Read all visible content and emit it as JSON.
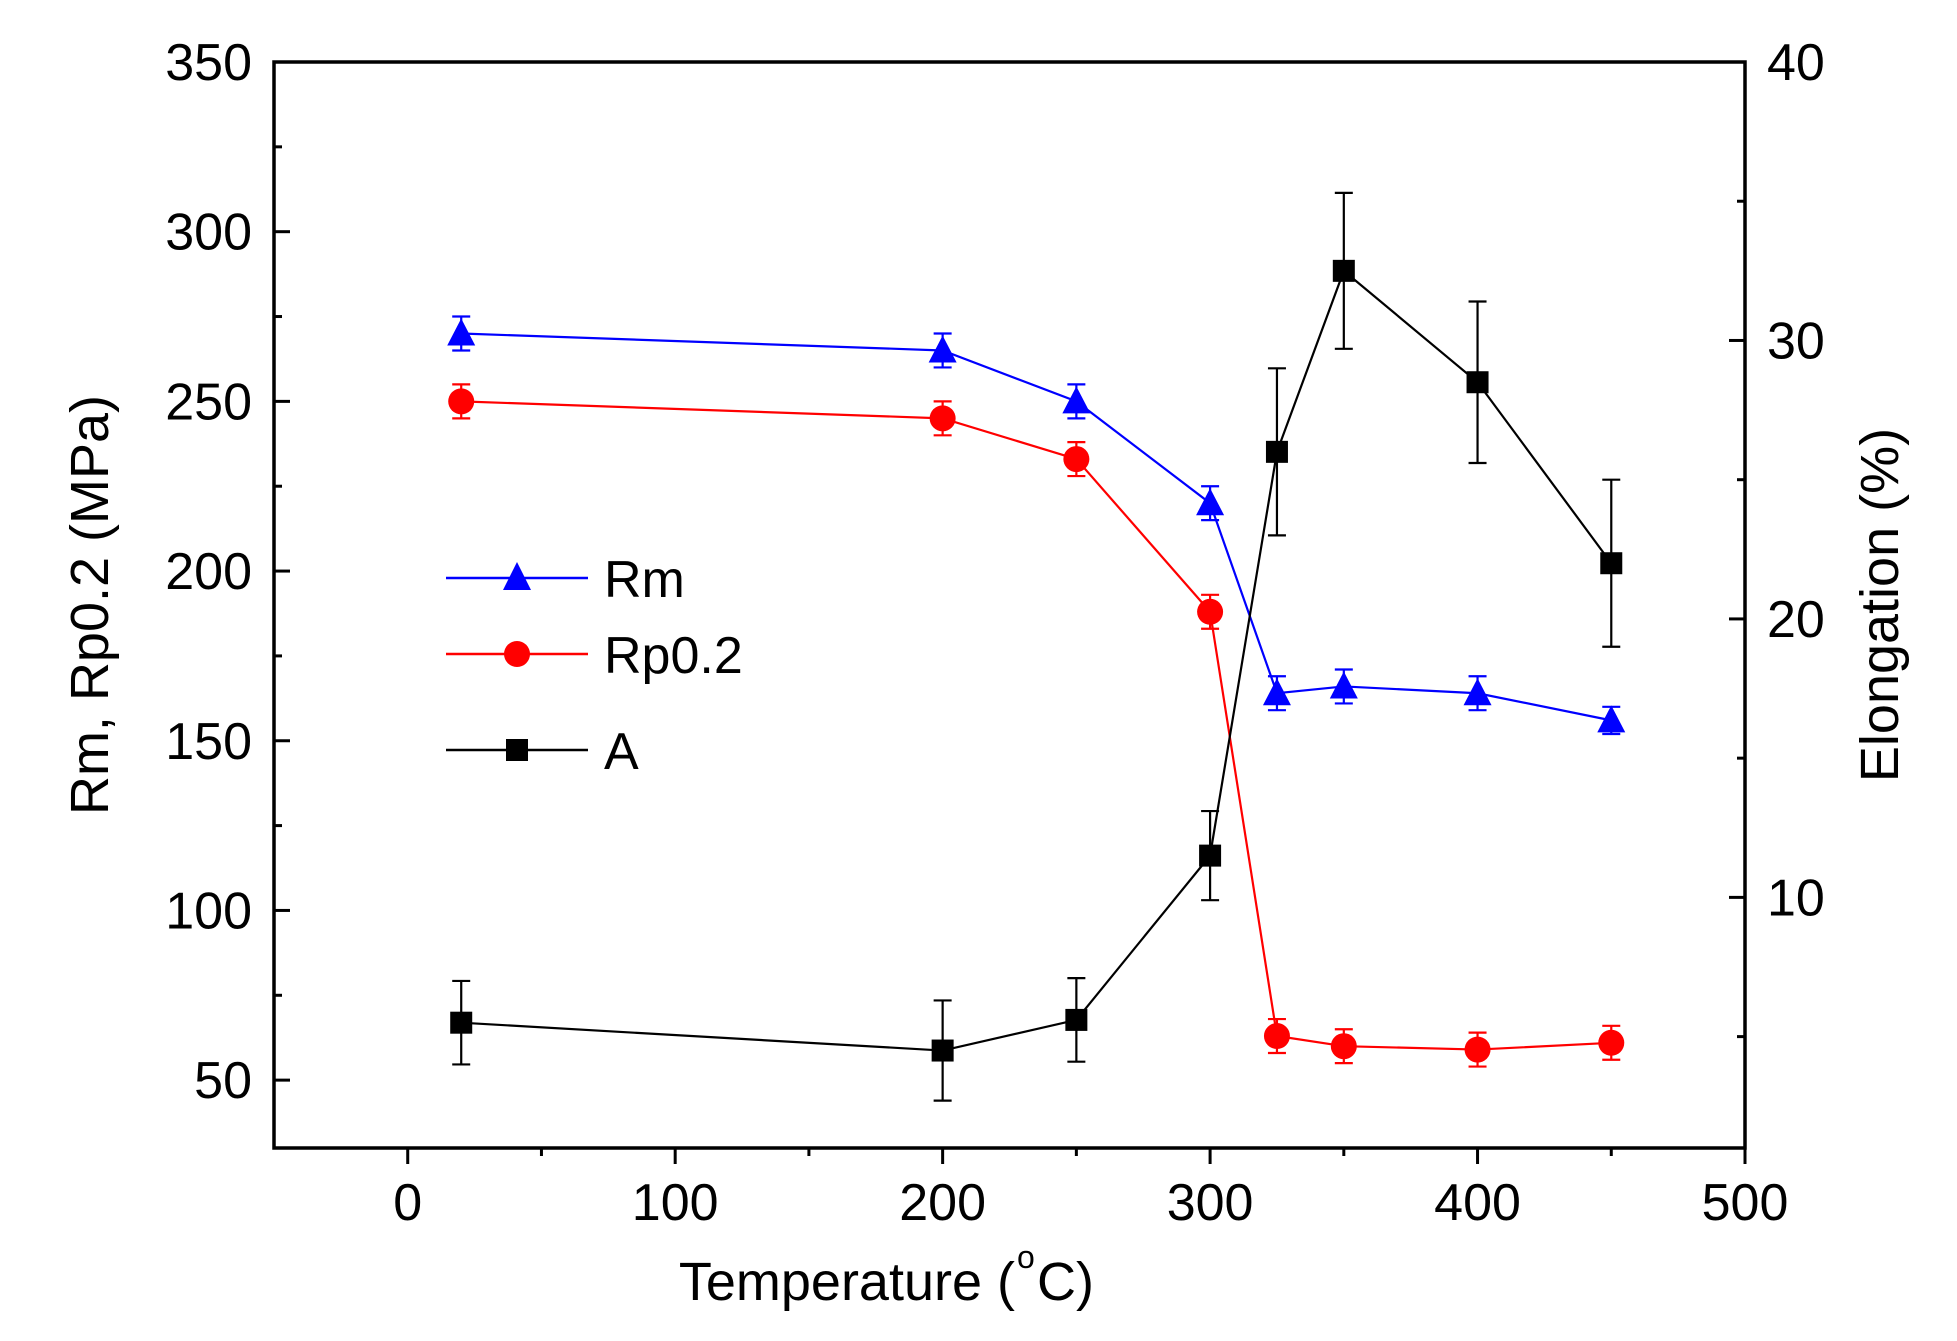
{
  "chart_data": {
    "type": "line",
    "title": "",
    "xlabel": "Temperature (",
    "xlabel_sup": "o",
    "xlabel_suffix": "C)",
    "ylabel": "Rm, Rp0.2 (MPa)",
    "y2label": "Elongation (%)",
    "xlim": [
      -50,
      500
    ],
    "ylim": [
      30,
      350
    ],
    "y2lim": [
      1,
      40
    ],
    "x_ticks": [
      0,
      100,
      200,
      300,
      400,
      500
    ],
    "x_tick_labels": [
      "0",
      "100",
      "200",
      "300",
      "400",
      "500"
    ],
    "y_ticks": [
      50,
      100,
      150,
      200,
      250,
      300,
      350
    ],
    "y_tick_labels": [
      "50",
      "100",
      "150",
      "200",
      "250",
      "300",
      "350"
    ],
    "y2_ticks": [
      10,
      20,
      30,
      40
    ],
    "y2_tick_labels": [
      "10",
      "20",
      "30",
      "40"
    ],
    "legend_position": "center-left",
    "grid": false,
    "series": [
      {
        "name": "Rm",
        "axis": "left",
        "color": "#0000ff",
        "marker": "triangle",
        "x": [
          20,
          200,
          250,
          300,
          325,
          350,
          400,
          450
        ],
        "values": [
          270,
          265,
          250,
          220,
          164,
          166,
          164,
          156
        ],
        "errors": [
          5,
          5,
          5,
          5,
          5,
          5,
          5,
          4
        ]
      },
      {
        "name": "Rp0.2",
        "axis": "left",
        "color": "#ff0000",
        "marker": "circle",
        "x": [
          20,
          200,
          250,
          300,
          325,
          350,
          400,
          450
        ],
        "values": [
          250,
          245,
          233,
          188,
          63,
          60,
          59,
          61
        ],
        "errors": [
          5,
          5,
          5,
          5,
          5,
          5,
          5,
          5
        ]
      },
      {
        "name": "A",
        "axis": "right",
        "color": "#000000",
        "marker": "square",
        "x": [
          20,
          200,
          250,
          300,
          325,
          350,
          400,
          450
        ],
        "values": [
          5.5,
          4.5,
          5.6,
          11.5,
          26,
          32.5,
          28.5,
          22
        ],
        "errors": [
          1.5,
          1.8,
          1.5,
          1.6,
          3.0,
          2.8,
          2.9,
          3.0
        ]
      }
    ]
  }
}
